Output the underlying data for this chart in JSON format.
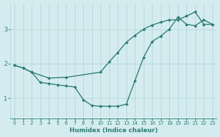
{
  "xlabel": "Humidex (Indice chaleur)",
  "bg_color": "#d4ecef",
  "line_color": "#2d7d74",
  "grid_color": "#b8d8dc",
  "xlim": [
    -0.5,
    23.5
  ],
  "ylim": [
    0.4,
    3.75
  ],
  "yticks": [
    1,
    2,
    3
  ],
  "xticks": [
    0,
    1,
    2,
    3,
    4,
    5,
    6,
    7,
    8,
    9,
    10,
    11,
    12,
    13,
    14,
    15,
    16,
    17,
    18,
    19,
    20,
    21,
    22,
    23
  ],
  "line1_x": [
    0,
    1,
    2,
    3,
    4,
    5,
    6,
    7,
    8,
    9,
    10,
    11,
    12,
    13,
    14,
    15,
    16,
    17,
    18,
    19,
    20,
    21,
    22,
    23
  ],
  "line1_y": [
    1.95,
    1.87,
    1.75,
    1.45,
    1.42,
    1.38,
    1.35,
    1.32,
    0.95,
    0.78,
    0.76,
    0.76,
    0.76,
    0.82,
    1.5,
    2.18,
    2.64,
    2.8,
    3.0,
    3.35,
    3.14,
    3.1,
    3.27,
    3.14
  ],
  "line2_x": [
    0,
    1,
    2,
    4,
    6,
    10,
    11,
    12,
    13,
    14,
    15,
    16,
    17,
    18,
    19,
    20,
    21,
    22,
    23
  ],
  "line2_y": [
    1.95,
    1.87,
    1.75,
    1.58,
    1.6,
    1.75,
    2.05,
    2.32,
    2.62,
    2.82,
    3.0,
    3.12,
    3.2,
    3.27,
    3.27,
    3.38,
    3.5,
    3.14,
    3.14
  ],
  "marker_size": 2.5,
  "line_width": 1.0
}
